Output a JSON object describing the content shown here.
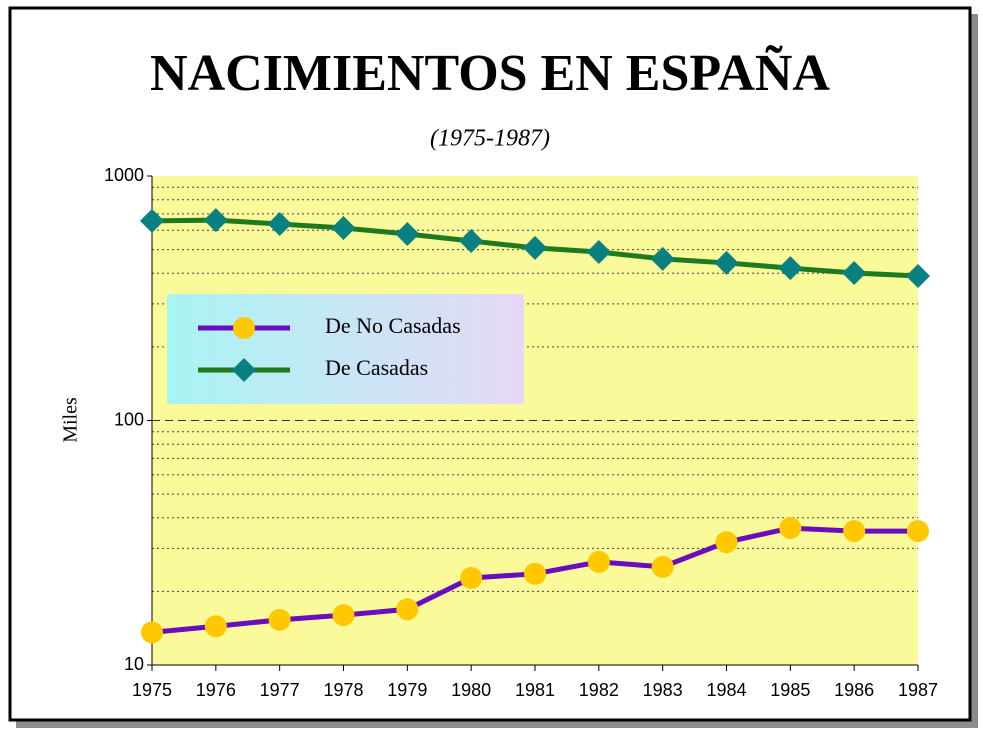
{
  "chart_data": {
    "type": "line",
    "title": "NACIMIENTOS EN ESPAÑA",
    "subtitle": "(1975-1987)",
    "y_label": "Miles",
    "x": [
      1975,
      1976,
      1977,
      1978,
      1979,
      1980,
      1981,
      1982,
      1983,
      1984,
      1985,
      1986,
      1987
    ],
    "xlim": [
      1975,
      1987
    ],
    "xticks": [
      1975,
      1976,
      1977,
      1978,
      1979,
      1980,
      1981,
      1982,
      1983,
      1984,
      1985,
      1986,
      1987
    ],
    "ylim": [
      10,
      1000
    ],
    "yticks": [
      10,
      100,
      1000
    ],
    "y_minor_grid": [
      20,
      30,
      40,
      50,
      60,
      70,
      80,
      90,
      200,
      300,
      400,
      500,
      600,
      700,
      800,
      900
    ],
    "log_y": true,
    "grid": true,
    "legend": "upper left",
    "series": [
      {
        "name": "De No Casadas",
        "color": "#6a0dbf",
        "marker": "circle",
        "marker_color": "#ffc800",
        "values": [
          13.6,
          14.4,
          15.3,
          16.0,
          16.9,
          22.7,
          23.6,
          26.4,
          25.2,
          31.8,
          36.3,
          35.3,
          35.3
        ]
      },
      {
        "name": "De Casadas",
        "color": "#1f7a1f",
        "marker": "diamond",
        "marker_color": "#0a8080",
        "values": [
          655,
          660,
          636,
          613,
          579,
          542,
          508,
          489,
          458,
          441,
          420,
          401,
          390
        ]
      }
    ]
  }
}
